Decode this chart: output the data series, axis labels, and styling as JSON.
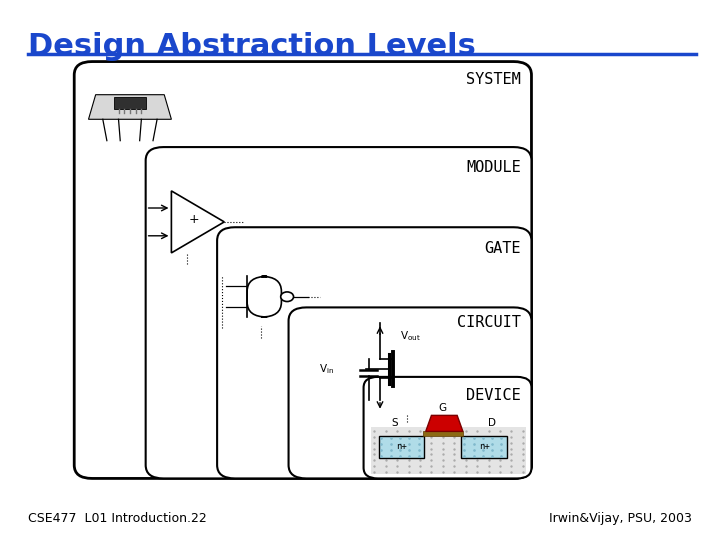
{
  "title": "Design Abstraction Levels",
  "title_color": "#1a47cc",
  "title_fontsize": 22,
  "separator_color": "#1a47cc",
  "bg_color": "#ffffff",
  "footer_left": "CSE477  L01 Introduction.22",
  "footer_right": "Irwin&Vijay, PSU, 2003",
  "footer_fontsize": 9,
  "label_fontsize": 11,
  "mosfet_colors": {
    "gate_red": "#cc0000",
    "gate_dark": "#7a0000",
    "oxide": "#8b6914",
    "nplus_fill": "#b0dce8"
  }
}
